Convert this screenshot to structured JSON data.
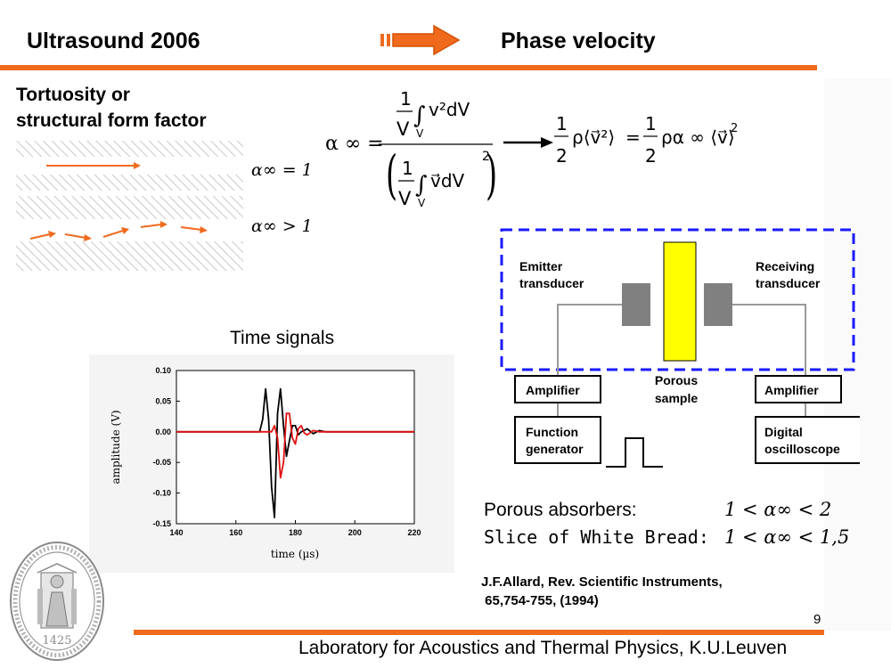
{
  "header": {
    "left_title": "Ultrasound 2006",
    "right_title": "Phase velocity"
  },
  "section_title": [
    "Tortuosity or",
    "structural form factor"
  ],
  "tortuosity_cases": [
    {
      "label": "α∞ = 1",
      "flow": "straight"
    },
    {
      "label": "α∞ > 1",
      "flow": "tortuous"
    }
  ],
  "formula": {
    "lhs": "α ∞ =",
    "numerator": {
      "one": "1",
      "V": "V",
      "integral": "∫",
      "sub": "V",
      "body": "v²dV"
    },
    "denominator": {
      "one": "1",
      "V": "V",
      "integral": "∫",
      "sub": "V",
      "body": "v⃗dV",
      "power": "2"
    },
    "result": {
      "left": {
        "num": "1",
        "den": "2",
        "expr": "ρ⟨v⃗²⟩"
      },
      "equals": "=",
      "right": {
        "num": "1",
        "den": "2",
        "expr": "ρα ∞ ⟨v⃗⟩",
        "power": "2"
      }
    }
  },
  "time_signals_label": "Time signals",
  "chart_data": {
    "type": "line",
    "xlabel": "time (µs)",
    "ylabel": "amplitude (V)",
    "xlim": [
      140,
      220
    ],
    "ylim": [
      -0.15,
      0.1
    ],
    "x_ticks": [
      "140",
      "160",
      "180",
      "200",
      "220"
    ],
    "y_ticks": [
      "0.10",
      "0.05",
      "0.00",
      "-0.05",
      "-0.10",
      "-0.15"
    ],
    "grid": false,
    "series": [
      {
        "color": "#000000",
        "x": [
          140,
          165,
          168,
          169,
          170,
          171,
          172,
          173,
          174,
          175,
          176,
          177,
          178,
          179,
          180,
          181,
          182,
          184,
          186,
          188,
          190,
          195,
          200,
          220
        ],
        "y": [
          0,
          0,
          0.0,
          0.02,
          0.07,
          0.02,
          -0.09,
          -0.14,
          0.03,
          0.07,
          0.01,
          -0.04,
          -0.015,
          0.01,
          0.01,
          -0.005,
          0.0,
          0.005,
          -0.003,
          0.002,
          0,
          0,
          0,
          0
        ]
      },
      {
        "color": "#e01010",
        "x": [
          140,
          170,
          172,
          173,
          174,
          175,
          176,
          177,
          178,
          179,
          180,
          181,
          182,
          183,
          184,
          186,
          188,
          190,
          200,
          220
        ],
        "y": [
          0,
          0,
          0.0,
          0.01,
          -0.01,
          -0.075,
          -0.05,
          0.03,
          0.03,
          -0.01,
          -0.02,
          0.005,
          0.01,
          -0.002,
          -0.005,
          0.002,
          0,
          0,
          0,
          0
        ]
      }
    ]
  },
  "setup": {
    "emitter_label": [
      "Emitter",
      "transducer"
    ],
    "receiver_label": [
      "Receiving",
      "transducer"
    ],
    "sample_label": [
      "Porous",
      "sample"
    ],
    "amp_left": "Amplifier",
    "amp_right": "Amplifier",
    "function_generator": [
      "Function",
      "generator"
    ],
    "oscilloscope": [
      "Digital",
      "oscilloscope"
    ],
    "colors": {
      "sample": "#ffff00",
      "dashed_box": "#1a1aff",
      "transducer": "#808080"
    }
  },
  "porous": {
    "absorbers_label": "Porous absorbers:",
    "absorbers_range": "1 < α∞ < 2",
    "bread_label": "Slice of White Bread:",
    "bread_range": "1 < α∞ < 1,5"
  },
  "reference": [
    "J.F.Allard, Rev. Scientific Instruments,",
    " 65,754-755, (1994)"
  ],
  "page_number": "9",
  "footer": "Laboratory for Acoustics and Thermal Physics, K.U.Leuven",
  "seal_text": "1425",
  "accent_color": "#f06a1e"
}
